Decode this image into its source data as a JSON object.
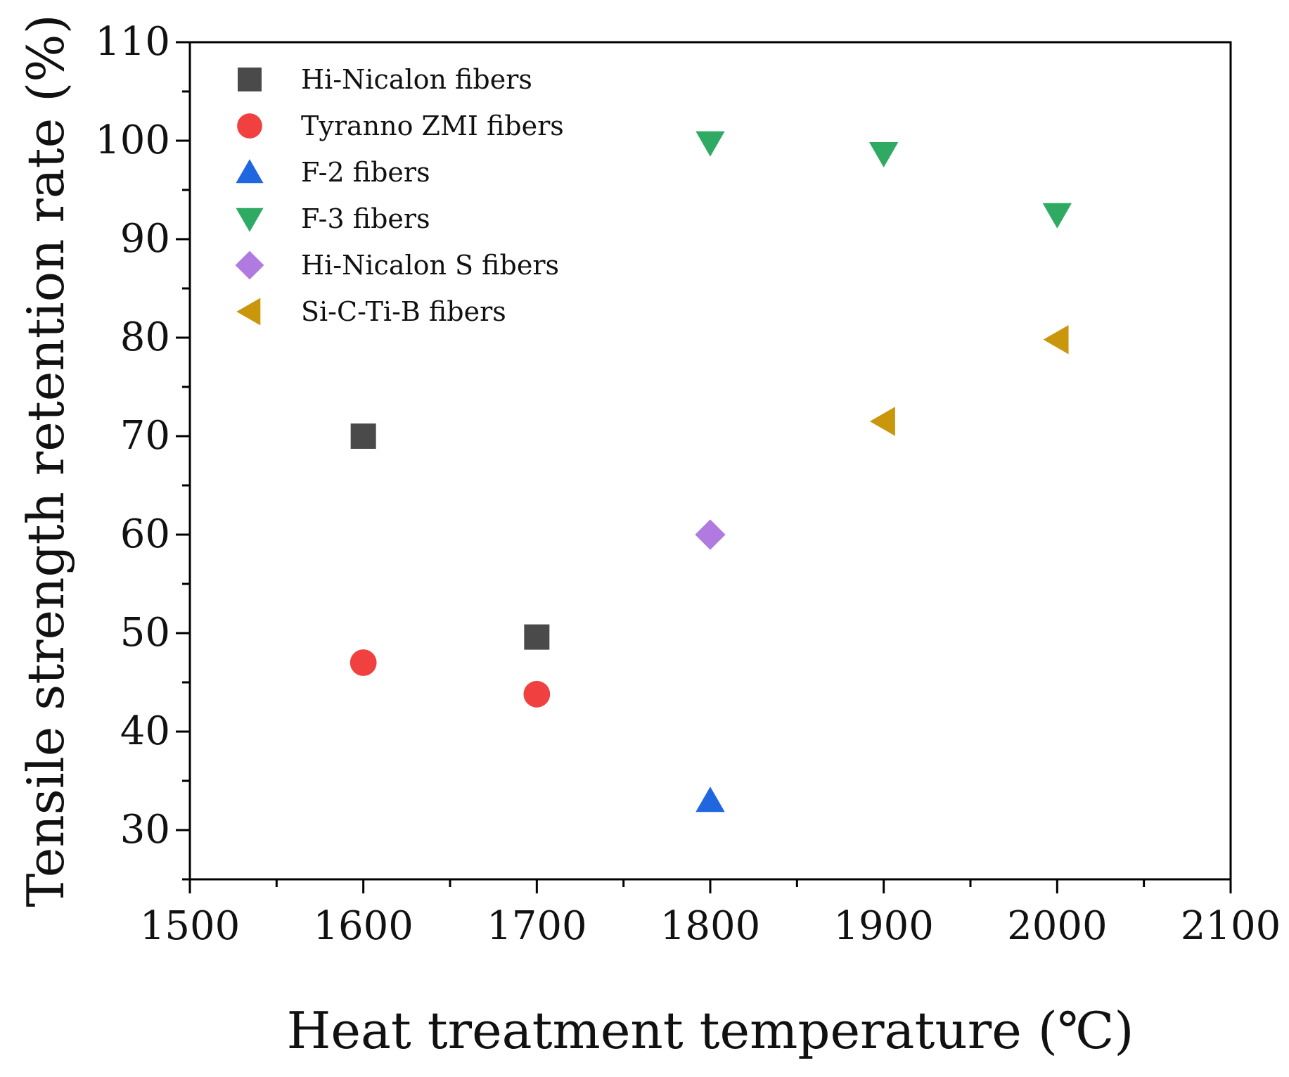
{
  "chart_data": {
    "type": "scatter",
    "title": "",
    "xlabel": "Heat treatment temperature (℃)",
    "ylabel": "Tensile strength retention rate (%)",
    "xlim": [
      1500,
      2100
    ],
    "ylim": [
      25,
      110
    ],
    "xticks": [
      1500,
      1600,
      1700,
      1800,
      1900,
      2000,
      2100
    ],
    "xtick_labels": [
      "1500",
      "1600",
      "1700",
      "1800",
      "1900",
      "2000",
      "2100"
    ],
    "yticks": [
      30,
      40,
      50,
      60,
      70,
      80,
      90,
      100,
      110
    ],
    "ytick_labels": [
      "30",
      "40",
      "50",
      "60",
      "70",
      "80",
      "90",
      "100",
      "110"
    ],
    "grid": false,
    "legend_position": "top-left",
    "series": [
      {
        "name": "Hi-Nicalon fibers",
        "marker": "square",
        "color": "#4a4a4a",
        "points": [
          [
            1600,
            70
          ],
          [
            1700,
            49.6
          ]
        ]
      },
      {
        "name": "Tyranno ZMI fibers",
        "marker": "circle",
        "color": "#f04040",
        "points": [
          [
            1600,
            47
          ],
          [
            1700,
            43.8
          ]
        ]
      },
      {
        "name": "F-2 fibers",
        "marker": "triangle-up",
        "color": "#1f66e0",
        "points": [
          [
            1800,
            33
          ]
        ]
      },
      {
        "name": "F-3 fibers",
        "marker": "triangle-down",
        "color": "#2eaa62",
        "points": [
          [
            1800,
            99.8
          ],
          [
            1900,
            98.7
          ],
          [
            2000,
            92.5
          ]
        ]
      },
      {
        "name": "Hi-Nicalon S fibers",
        "marker": "diamond",
        "color": "#b07ae0",
        "points": [
          [
            1800,
            60
          ]
        ]
      },
      {
        "name": "Si-C-Ti-B fibers",
        "marker": "triangle-left",
        "color": "#c9960c",
        "points": [
          [
            1900,
            71.5
          ],
          [
            2000,
            79.8
          ]
        ]
      }
    ]
  }
}
